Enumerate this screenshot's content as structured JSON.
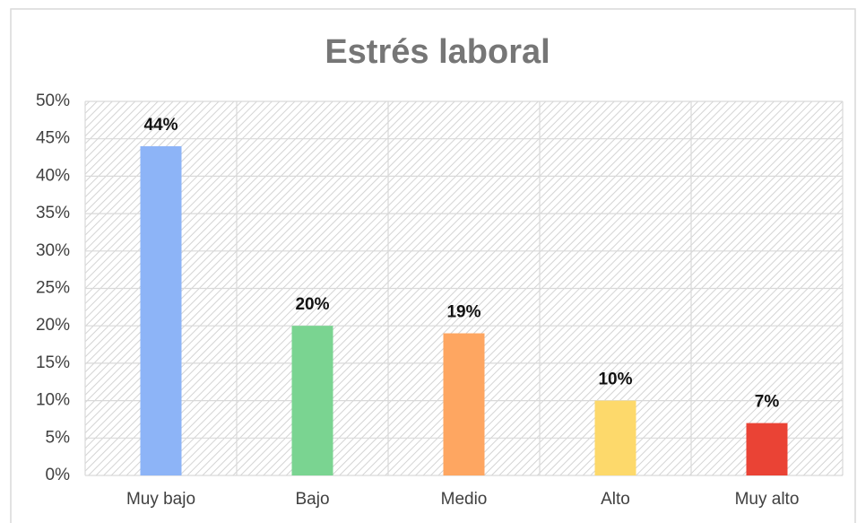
{
  "chart_data": {
    "type": "bar",
    "title": "Estrés laboral",
    "categories": [
      "Muy bajo",
      "Bajo",
      "Medio",
      "Alto",
      "Muy alto"
    ],
    "values": [
      44,
      20,
      19,
      10,
      7
    ],
    "value_labels": [
      "44%",
      "20%",
      "19%",
      "10%",
      "7%"
    ],
    "colors": [
      "#8db4f7",
      "#7ad491",
      "#fea661",
      "#fdd96b",
      "#ea4335"
    ],
    "ylim": [
      0,
      50
    ],
    "yticks": [
      {
        "value": 0,
        "label": "0%"
      },
      {
        "value": 5,
        "label": "5%"
      },
      {
        "value": 10,
        "label": "10%"
      },
      {
        "value": 15,
        "label": "15%"
      },
      {
        "value": 20,
        "label": "20%"
      },
      {
        "value": 25,
        "label": "25%"
      },
      {
        "value": 30,
        "label": "30%"
      },
      {
        "value": 35,
        "label": "35%"
      },
      {
        "value": 40,
        "label": "40%"
      },
      {
        "value": 45,
        "label": "45%"
      },
      {
        "value": 50,
        "label": "50%"
      }
    ],
    "grid": true
  }
}
